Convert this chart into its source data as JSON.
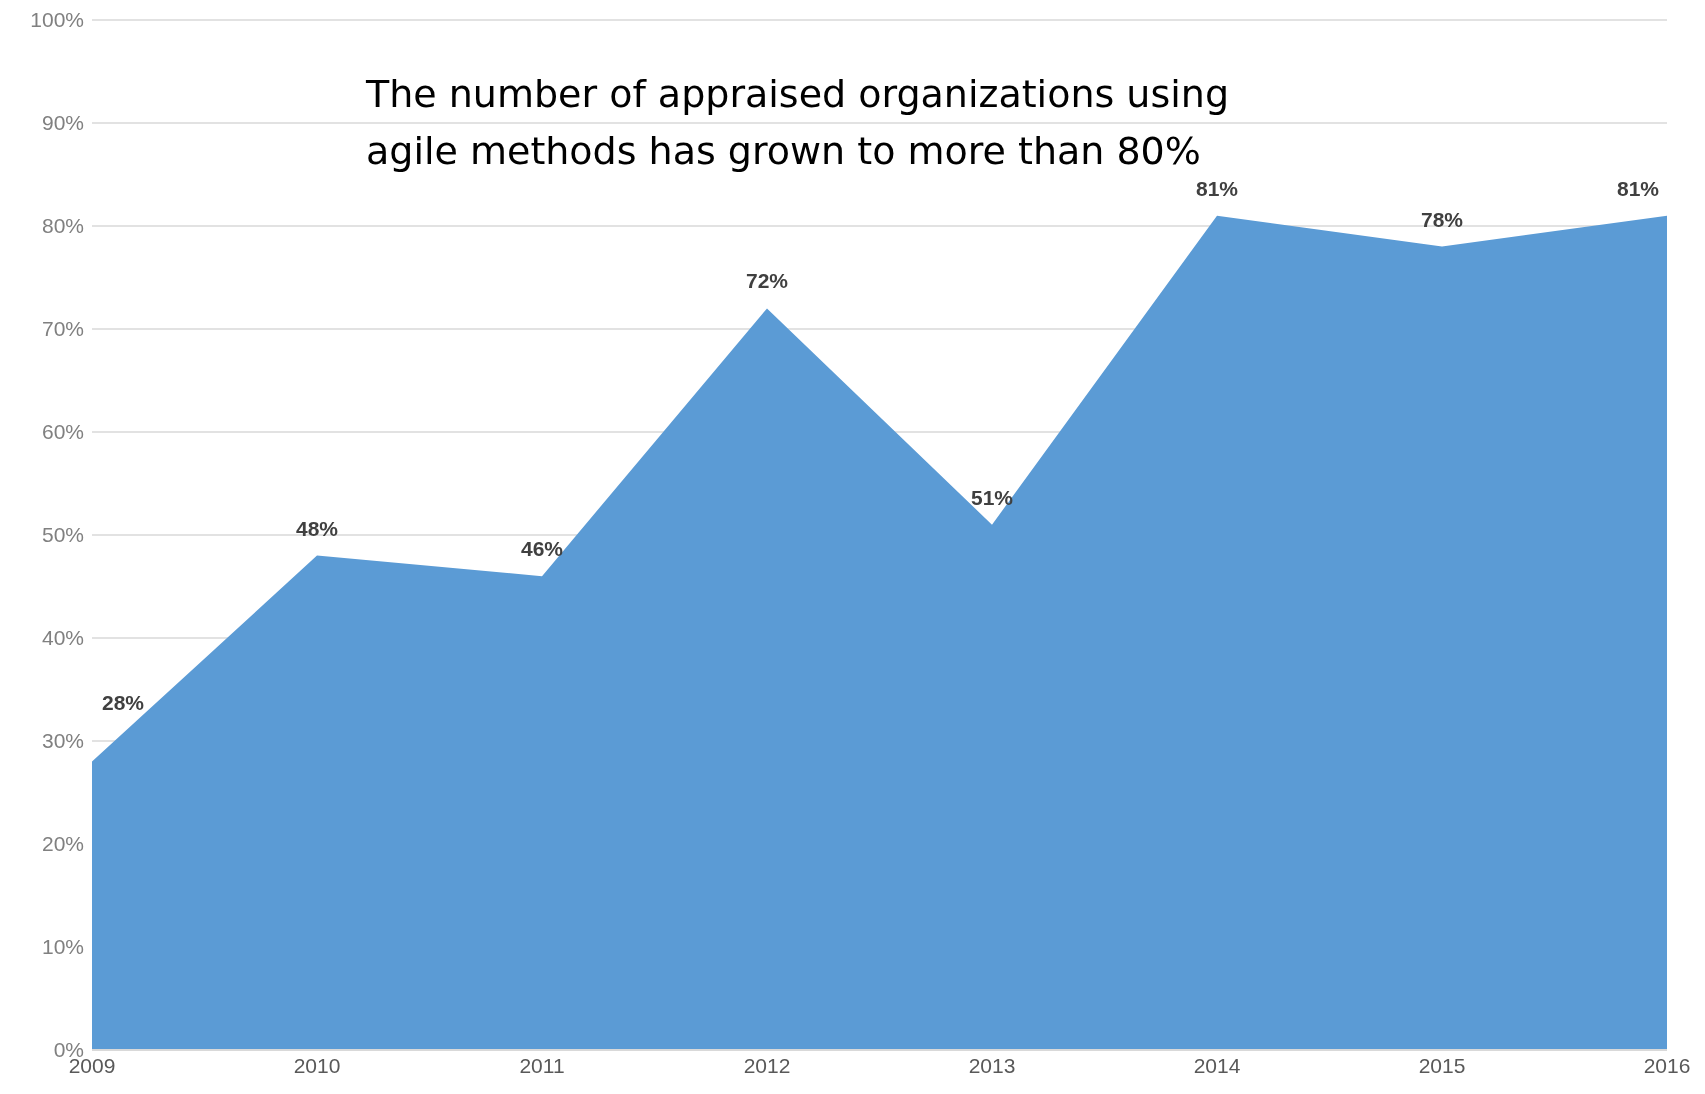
{
  "chart_data": {
    "type": "area",
    "title": "The number of appraised organizations using agile methods has grown to more than 80%",
    "categories": [
      "2009",
      "2010",
      "2011",
      "2012",
      "2013",
      "2014",
      "2015",
      "2016"
    ],
    "series": [
      {
        "color": "#5b9bd5",
        "values": [
          28,
          48,
          46,
          72,
          51,
          81,
          78,
          81
        ]
      }
    ],
    "value_labels": [
      "28%",
      "48%",
      "46%",
      "72%",
      "51%",
      "81%",
      "78%",
      "81%"
    ],
    "ylim": [
      0,
      100
    ],
    "yticks": [
      {
        "value": 0,
        "label": "0%"
      },
      {
        "value": 10,
        "label": "10%"
      },
      {
        "value": 20,
        "label": "20%"
      },
      {
        "value": 30,
        "label": "30%"
      },
      {
        "value": 40,
        "label": "40%"
      },
      {
        "value": 50,
        "label": "50%"
      },
      {
        "value": 60,
        "label": "60%"
      },
      {
        "value": 70,
        "label": "70%"
      },
      {
        "value": 80,
        "label": "80%"
      },
      {
        "value": 90,
        "label": "90%"
      },
      {
        "value": 100,
        "label": "100%"
      }
    ],
    "grid": "y",
    "legend": false
  }
}
